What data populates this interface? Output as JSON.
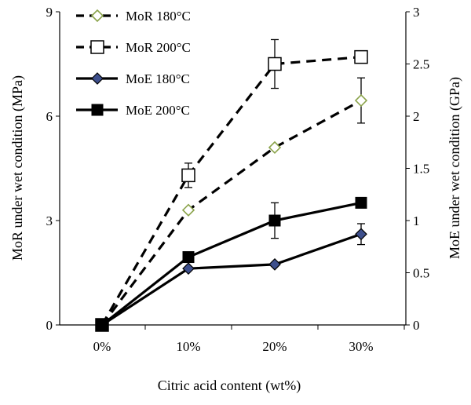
{
  "chart_data": {
    "type": "line",
    "categories": [
      "0%",
      "10%",
      "20%",
      "30%"
    ],
    "xlabel": "Citric acid content (wt%)",
    "ylabel_left": "MoR under wet condition (MPa)",
    "ylabel_right": "MoE under wet condition (GPa)",
    "ylim_left": [
      0,
      9
    ],
    "ylim_right": [
      0,
      3
    ],
    "yticks_left": [
      "0",
      "3",
      "6",
      "9"
    ],
    "yticks_right": [
      "0",
      "0.5",
      "1",
      "1.5",
      "2",
      "2.5",
      "3"
    ],
    "grid": false,
    "legend_position": "top-left",
    "series": [
      {
        "name": "MoR 180°C",
        "axis": "left",
        "values": [
          0,
          3.3,
          5.1,
          6.45
        ],
        "error": [
          0,
          0,
          0,
          0.65
        ],
        "line_style": "dashed",
        "marker": "diamond-open",
        "marker_color": "#8aa34a"
      },
      {
        "name": "MoR 200°C",
        "axis": "left",
        "values": [
          0,
          4.3,
          7.5,
          7.7
        ],
        "error": [
          0,
          0.35,
          0.7,
          0
        ],
        "line_style": "dashed",
        "marker": "square-open",
        "marker_color": "#000000"
      },
      {
        "name": "MoE 180°C",
        "axis": "right",
        "values": [
          0,
          0.54,
          0.58,
          0.87
        ],
        "error": [
          0,
          0,
          0,
          0.1
        ],
        "line_style": "solid",
        "marker": "diamond-filled",
        "marker_color": "#3d4f8c"
      },
      {
        "name": "MoE 200°C",
        "axis": "right",
        "values": [
          0,
          0.65,
          1.0,
          1.17
        ],
        "error": [
          0,
          0,
          0.17,
          0
        ],
        "line_style": "solid",
        "marker": "square-filled",
        "marker_color": "#000000"
      }
    ]
  }
}
